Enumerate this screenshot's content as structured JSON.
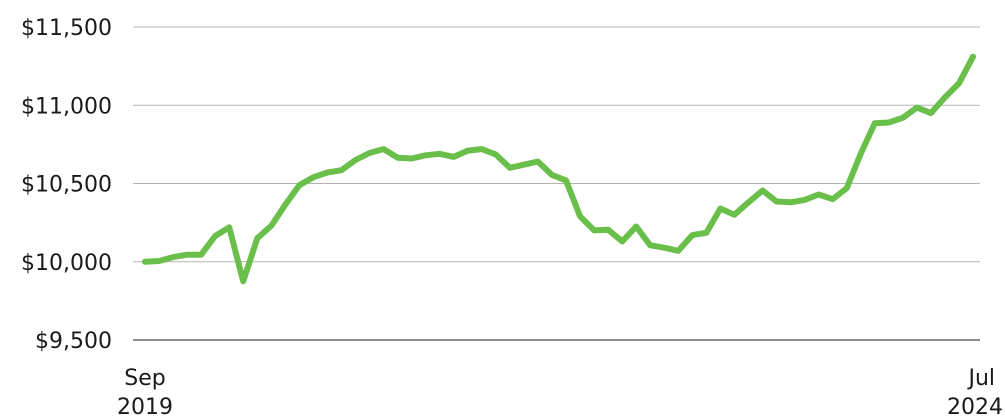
{
  "chart_data": {
    "type": "line",
    "title": "",
    "xlabel": "",
    "ylabel": "",
    "ylim": [
      9500,
      11500
    ],
    "y_ticks": [
      "$9,500",
      "$10,000",
      "$10,500",
      "$11,000",
      "$11,500"
    ],
    "y_tick_values": [
      9500,
      10000,
      10500,
      11000,
      11500
    ],
    "x_tick_labels": [
      {
        "month": "Sep",
        "year": "2019"
      },
      {
        "month": "Jul",
        "year": "2024"
      }
    ],
    "grid": true,
    "line_color": "#6abf4b",
    "series": [
      {
        "values": [
          10000,
          10005,
          10030,
          10045,
          10045,
          10165,
          10220,
          9875,
          10150,
          10230,
          10365,
          10490,
          10540,
          10570,
          10585,
          10650,
          10695,
          10720,
          10665,
          10660,
          10680,
          10690,
          10670,
          10710,
          10720,
          10685,
          10600,
          10620,
          10640,
          10555,
          10520,
          10290,
          10200,
          10205,
          10130,
          10225,
          10105,
          10090,
          10070,
          10170,
          10185,
          10340,
          10300,
          10380,
          10455,
          10385,
          10380,
          10395,
          10430,
          10400,
          10470,
          10690,
          10885,
          10890,
          10920,
          10985,
          10950,
          11050,
          11140,
          11310
        ]
      }
    ]
  }
}
